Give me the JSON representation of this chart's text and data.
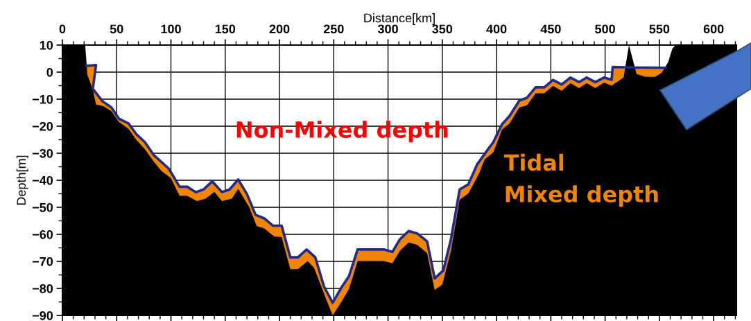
{
  "chart_data": {
    "type": "area",
    "xlabel": "Distance[km]",
    "ylabel": "Depth[m]",
    "xlim": [
      0,
      621
    ],
    "ylim": [
      -90,
      10
    ],
    "xticks": [
      0,
      50,
      100,
      150,
      200,
      250,
      300,
      350,
      400,
      450,
      500,
      550,
      600
    ],
    "yticks": [
      -90,
      -80,
      -70,
      -60,
      -50,
      -40,
      -30,
      -20,
      -10,
      0,
      10
    ],
    "grid": true,
    "annotations": [
      "Non-Mixed depth",
      "Tidal\nMixed depth"
    ],
    "series": [
      {
        "color": "#ef8500",
        "x": [
          22,
          31,
          28,
          37,
          45,
          52,
          61,
          68,
          76,
          84,
          98,
          108,
          115,
          123,
          130,
          138,
          147,
          154,
          162,
          170,
          178,
          186,
          194,
          202,
          210,
          217,
          225,
          233,
          241,
          249,
          257,
          264,
          272,
          296,
          304,
          311,
          319,
          327,
          336,
          343,
          351,
          358,
          366,
          374,
          382,
          390,
          397,
          405,
          412,
          421,
          428,
          436,
          444,
          452,
          460,
          468,
          476,
          483,
          491,
          499,
          506,
          507,
          517,
          527,
          556
        ],
        "values": [
          2.3,
          2.6,
          -6.2,
          -10.8,
          -13,
          -17.2,
          -19,
          -22.9,
          -25.9,
          -30.6,
          -35.7,
          -42.4,
          -42.4,
          -44.4,
          -43.4,
          -40.4,
          -44.4,
          -43.4,
          -39.7,
          -45.1,
          -52.8,
          -54.1,
          -56.8,
          -56.8,
          -68.5,
          -68.5,
          -65.6,
          -68.5,
          -79.3,
          -85.3,
          -79.7,
          -75.5,
          -65.6,
          -65.6,
          -66.5,
          -61.8,
          -58.8,
          -59.7,
          -62.6,
          -76.3,
          -73.3,
          -61.8,
          -43.4,
          -41.5,
          -34.2,
          -29.7,
          -25.9,
          -19.3,
          -16.2,
          -10.5,
          -9.5,
          -5.6,
          -5.6,
          -2.9,
          -4.6,
          -2,
          -3.7,
          -2,
          -3.7,
          -2,
          -2.8,
          1.9,
          1.8,
          1.7,
          1.6
        ]
      },
      {
        "color": "#000000",
        "x": [
          0,
          21,
          23,
          28,
          31,
          38,
          45,
          52,
          61,
          68,
          76,
          84,
          91,
          100,
          108,
          115,
          124,
          132,
          140,
          147,
          156,
          162,
          172,
          179,
          186,
          195,
          202,
          210,
          217,
          226,
          232,
          243,
          249,
          257,
          264,
          272,
          296,
          304,
          311,
          319,
          327,
          336,
          343,
          350,
          358,
          366,
          374,
          384,
          389,
          397,
          405,
          412,
          421,
          428,
          436,
          444,
          452,
          460,
          468,
          476,
          483,
          491,
          499,
          506,
          514,
          517,
          522,
          529,
          537,
          546,
          552,
          558,
          562,
          565,
          621
        ],
        "values": [
          10,
          10,
          -1,
          -6.5,
          -12,
          -12.6,
          -14.4,
          -18.4,
          -21,
          -25,
          -28.5,
          -33,
          -36.5,
          -39.2,
          -45.8,
          -45.8,
          -47.7,
          -46.8,
          -44.3,
          -47.7,
          -46.8,
          -43.2,
          -49.8,
          -56.9,
          -57.8,
          -60.8,
          -61,
          -72.9,
          -72.9,
          -69.9,
          -72.5,
          -84,
          -90,
          -85,
          -80.2,
          -69.9,
          -69.9,
          -70.7,
          -66,
          -63,
          -63.9,
          -66.9,
          -80.6,
          -78.5,
          -66,
          -47.2,
          -44.9,
          -37.4,
          -32.3,
          -29.7,
          -21.3,
          -19,
          -13.1,
          -12.3,
          -7.8,
          -7.8,
          -5.1,
          -6.9,
          -4.1,
          -5.9,
          -4.1,
          -5.9,
          -3.9,
          -5,
          -2.8,
          -2,
          10,
          -0.7,
          -1.7,
          -1.7,
          -0.3,
          3.6,
          8.7,
          10,
          10
        ]
      },
      {
        "type": "line",
        "color": "#1f2a8a",
        "x": [
          22,
          31,
          28,
          37,
          45,
          52,
          61,
          68,
          76,
          84,
          98,
          108,
          115,
          123,
          130,
          138,
          147,
          154,
          162,
          170,
          178,
          186,
          194,
          202,
          210,
          217,
          225,
          233,
          241,
          249,
          257,
          264,
          272,
          296,
          304,
          311,
          319,
          327,
          336,
          343,
          351,
          358,
          366,
          374,
          382,
          390,
          397,
          405,
          412,
          421,
          428,
          436,
          444,
          452,
          460,
          468,
          476,
          483,
          491,
          499,
          506,
          507,
          517,
          522,
          527,
          556
        ],
        "values": [
          2.3,
          2.6,
          -6.2,
          -10.8,
          -13,
          -17.2,
          -19,
          -22.9,
          -25.9,
          -30.6,
          -35.7,
          -42.4,
          -42.4,
          -44.4,
          -43.4,
          -40.4,
          -44.4,
          -43.4,
          -39.7,
          -45.1,
          -52.8,
          -54.1,
          -56.8,
          -56.8,
          -68.5,
          -68.5,
          -65.6,
          -68.5,
          -79.3,
          -85.3,
          -79.7,
          -75.5,
          -65.6,
          -65.6,
          -66.5,
          -61.8,
          -58.8,
          -59.7,
          -62.6,
          -76.3,
          -73.3,
          -61.8,
          -43.4,
          -41.5,
          -34.2,
          -29.7,
          -25.9,
          -19.3,
          -16.2,
          -10.5,
          -9.5,
          -5.6,
          -5.6,
          -2.9,
          -4.6,
          -2,
          -3.7,
          -2,
          -3.7,
          -2,
          -2.8,
          1.9,
          1.8,
          1.8,
          1.7,
          1.6
        ]
      }
    ]
  }
}
